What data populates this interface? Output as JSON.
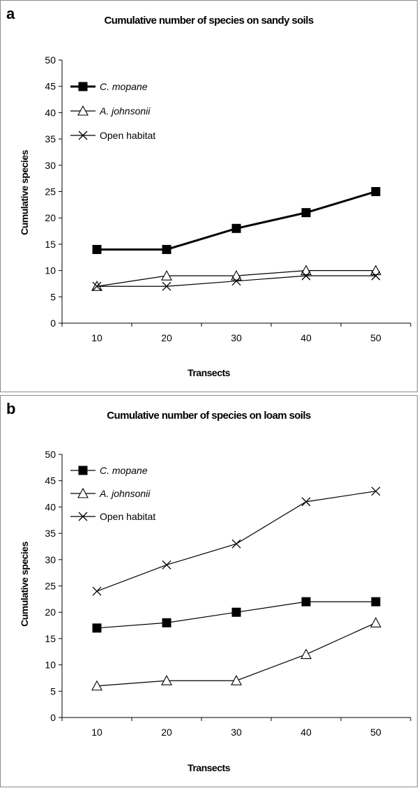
{
  "chart_data": [
    {
      "type": "line",
      "panel_label": "a",
      "title": "Cumulative number of species on sandy soils",
      "xlabel": "Transects",
      "ylabel": "Cumulative species",
      "x": [
        10,
        20,
        30,
        40,
        50
      ],
      "ylim": [
        0,
        50
      ],
      "yticks": [
        0,
        5,
        10,
        15,
        20,
        25,
        30,
        35,
        40,
        45,
        50
      ],
      "grid": false,
      "legend_position": "top-left",
      "series": [
        {
          "name": "C. mopane",
          "marker": "square",
          "values": [
            14,
            14,
            18,
            21,
            25
          ]
        },
        {
          "name": "A. johnsonii",
          "marker": "triangle",
          "values": [
            7,
            9,
            9,
            10,
            10
          ]
        },
        {
          "name": "Open habitat",
          "marker": "x",
          "values": [
            7,
            7,
            8,
            9,
            9
          ]
        }
      ]
    },
    {
      "type": "line",
      "panel_label": "b",
      "title": "Cumulative number of species on loam soils",
      "xlabel": "Transects",
      "ylabel": "Cumulative species",
      "x": [
        10,
        20,
        30,
        40,
        50
      ],
      "ylim": [
        0,
        50
      ],
      "yticks": [
        0,
        5,
        10,
        15,
        20,
        25,
        30,
        35,
        40,
        45,
        50
      ],
      "grid": false,
      "legend_position": "top-left",
      "series": [
        {
          "name": "C. mopane",
          "marker": "square",
          "values": [
            17,
            18,
            20,
            22,
            22
          ]
        },
        {
          "name": "A. johnsonii",
          "marker": "triangle",
          "values": [
            6,
            7,
            7,
            12,
            18
          ]
        },
        {
          "name": "Open habitat",
          "marker": "x",
          "values": [
            24,
            29,
            33,
            41,
            43
          ]
        }
      ]
    }
  ],
  "colors": {
    "line": "#000000",
    "background": "#ffffff",
    "border": "#8a8a8a"
  }
}
